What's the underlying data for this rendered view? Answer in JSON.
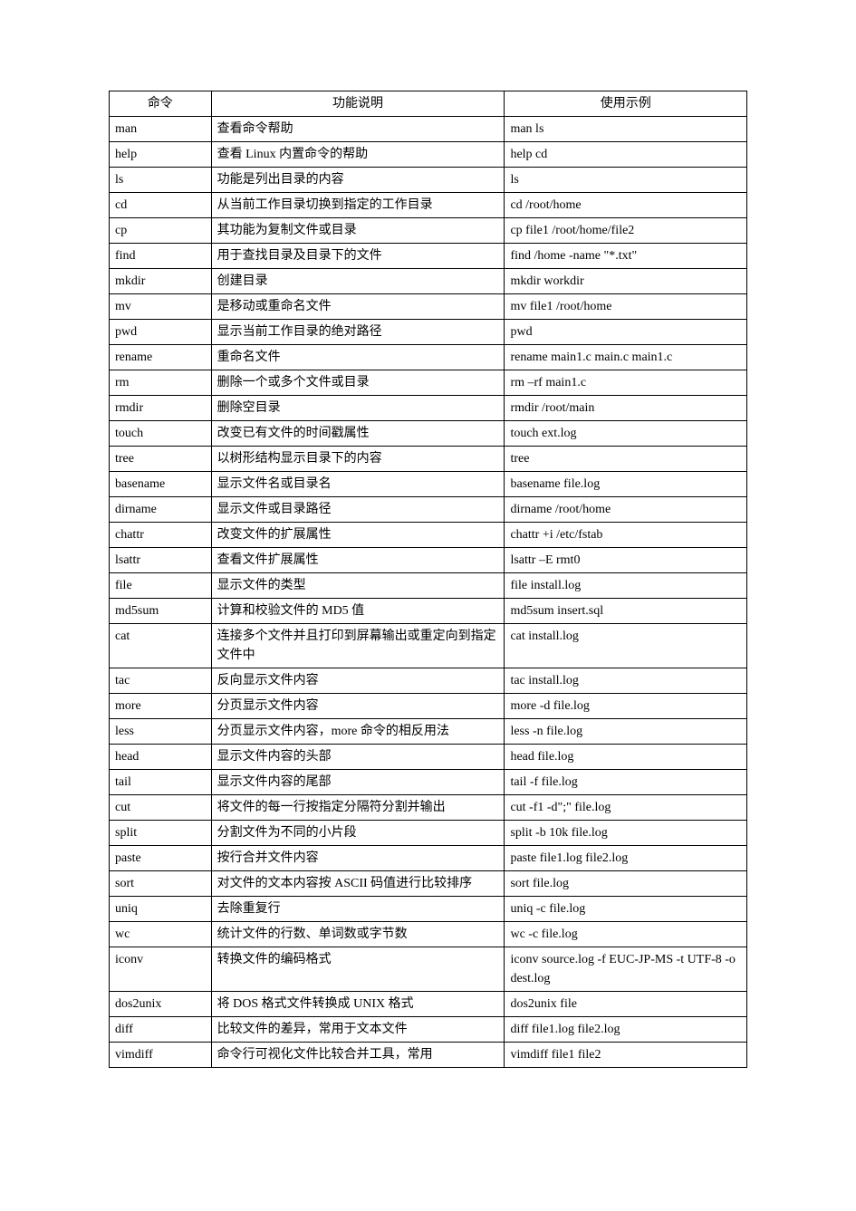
{
  "table": {
    "headers": {
      "command": "命令",
      "description": "功能说明",
      "example": "使用示例"
    },
    "rows": [
      {
        "command": "man",
        "description": "查看命令帮助",
        "example": "man  ls"
      },
      {
        "command": "help",
        "description": "查看 Linux  内置命令的帮助",
        "example": "help  cd"
      },
      {
        "command": "ls",
        "description": "功能是列出目录的内容",
        "example": "ls"
      },
      {
        "command": "cd",
        "description": "从当前工作目录切换到指定的工作目录",
        "example": "cd  /root/home"
      },
      {
        "command": "cp",
        "description": "其功能为复制文件或目录",
        "example": "cp  file1  /root/home/file2"
      },
      {
        "command": "find",
        "description": "用于查找目录及目录下的文件",
        "example": "find  /home  -name  \"*.txt\""
      },
      {
        "command": "mkdir",
        "description": "创建目录",
        "example": "mkdir  workdir"
      },
      {
        "command": "mv",
        "description": "是移动或重命名文件",
        "example": "mv  file1  /root/home"
      },
      {
        "command": "pwd",
        "description": "显示当前工作目录的绝对路径",
        "example": "pwd"
      },
      {
        "command": "rename",
        "description": "重命名文件",
        "example": "rename  main1.c  main.c  main1.c"
      },
      {
        "command": "rm",
        "description": "删除一个或多个文件或目录",
        "example": "rm  –rf  main1.c"
      },
      {
        "command": "rmdir",
        "description": "删除空目录",
        "example": "rmdir  /root/main"
      },
      {
        "command": "touch",
        "description": "改变已有文件的时间戳属性",
        "example": "touch  ext.log"
      },
      {
        "command": "tree",
        "description": "以树形结构显示目录下的内容",
        "example": "tree"
      },
      {
        "command": "basename",
        "description": "显示文件名或目录名",
        "example": "basename  file.log"
      },
      {
        "command": "dirname",
        "description": "显示文件或目录路径",
        "example": "dirname  /root/home"
      },
      {
        "command": "chattr",
        "description": "改变文件的扩展属性",
        "example": "chattr  +i  /etc/fstab"
      },
      {
        "command": "lsattr",
        "description": "查看文件扩展属性",
        "example": "lsattr  –E  rmt0"
      },
      {
        "command": "file",
        "description": "显示文件的类型",
        "example": "file  install.log"
      },
      {
        "command": "md5sum",
        "description": "计算和校验文件的 MD5  值",
        "example": "md5sum  insert.sql"
      },
      {
        "command": "cat",
        "description": "连接多个文件并且打印到屏幕输出或重定向到指定文件中",
        "example": "cat  install.log"
      },
      {
        "command": "tac",
        "description": "反向显示文件内容",
        "example": "tac  install.log"
      },
      {
        "command": "more",
        "description": "分页显示文件内容",
        "example": "more  -d  file.log"
      },
      {
        "command": "less",
        "description": "分页显示文件内容，more  命令的相反用法",
        "example": "less  -n  file.log"
      },
      {
        "command": "head",
        "description": "显示文件内容的头部",
        "example": "head  file.log"
      },
      {
        "command": "tail",
        "description": "显示文件内容的尾部",
        "example": "tail  -f  file.log"
      },
      {
        "command": "cut",
        "description": "将文件的每一行按指定分隔符分割并输出",
        "example": "cut  -f1  -d\";\"  file.log"
      },
      {
        "command": "split",
        "description": "分割文件为不同的小片段",
        "example": "split  -b  10k  file.log"
      },
      {
        "command": "paste",
        "description": "按行合并文件内容",
        "example": "paste  file1.log  file2.log"
      },
      {
        "command": "sort",
        "description": "对文件的文本内容按 ASCII  码值进行比较排序",
        "example": "sort  file.log"
      },
      {
        "command": "uniq",
        "description": "去除重复行",
        "example": "uniq  -c  file.log"
      },
      {
        "command": "wc",
        "description": "统计文件的行数、单词数或字节数",
        "example": "wc  -c  file.log"
      },
      {
        "command": "iconv",
        "description": "转换文件的编码格式",
        "example": "iconv    source.log    -f    EUC-JP-MS    -t  UTF-8  -o  dest.log"
      },
      {
        "command": "dos2unix",
        "description": "将 DOS  格式文件转换成 UNIX  格式",
        "example": "dos2unix  file"
      },
      {
        "command": "diff",
        "description": "比较文件的差异，常用于文本文件",
        "example": "diff  file1.log  file2.log"
      },
      {
        "command": "vimdiff",
        "description": "命令行可视化文件比较合并工具，常用",
        "example": "vimdiff  file1  file2"
      }
    ]
  },
  "styling": {
    "border_color": "#000000",
    "background_color": "#ffffff",
    "font_size": 14,
    "font_family": "SimSun",
    "col_widths": {
      "command": "16%",
      "description": "46%",
      "example": "38%"
    }
  }
}
